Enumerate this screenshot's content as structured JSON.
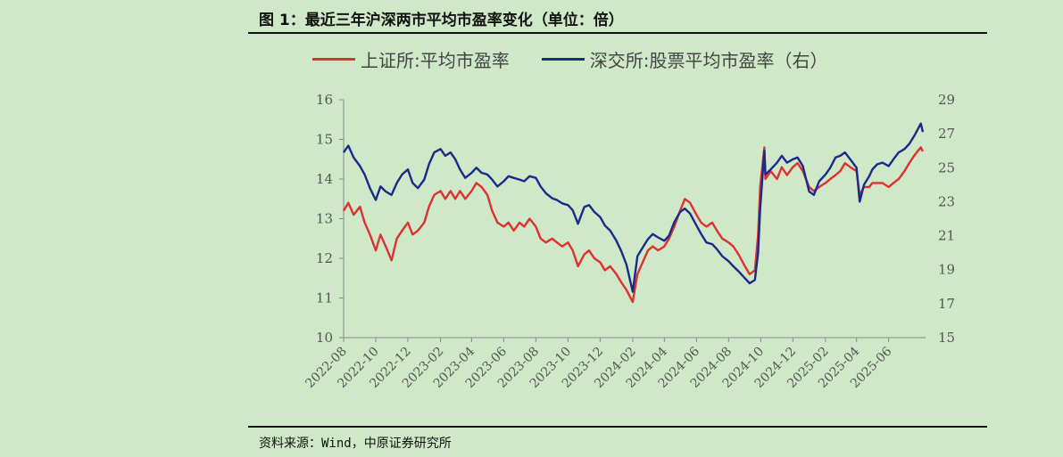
{
  "title": "图 1：最近三年沪深两市平均市盈率变化（单位：倍）",
  "source": "资料来源：Wind，中原证券研究所",
  "chart_data": {
    "type": "line",
    "x_ticks": [
      "2022-08",
      "2022-10",
      "2022-12",
      "2023-02",
      "2023-04",
      "2023-06",
      "2023-08",
      "2023-10",
      "2023-12",
      "2024-02",
      "2024-04",
      "2024-06",
      "2024-08",
      "2024-10",
      "2024-12",
      "2025-02",
      "2025-04",
      "2025-06"
    ],
    "y_left": {
      "min": 10,
      "max": 16,
      "ticks": [
        "10",
        "11",
        "12",
        "13",
        "14",
        "15",
        "16"
      ]
    },
    "y_right": {
      "min": 15,
      "max": 29,
      "ticks": [
        "15",
        "17",
        "19",
        "21",
        "23",
        "25",
        "27",
        "29"
      ]
    },
    "series": [
      {
        "name": "上证所:平均市盈率",
        "axis": "left",
        "color": "#e03030",
        "points": [
          [
            "2022-08-01",
            13.2
          ],
          [
            "2022-08-10",
            13.4
          ],
          [
            "2022-08-20",
            13.1
          ],
          [
            "2022-09-01",
            13.3
          ],
          [
            "2022-09-10",
            12.9
          ],
          [
            "2022-09-20",
            12.6
          ],
          [
            "2022-10-01",
            12.2
          ],
          [
            "2022-10-10",
            12.6
          ],
          [
            "2022-10-20",
            12.3
          ],
          [
            "2022-10-31",
            11.95
          ],
          [
            "2022-11-10",
            12.5
          ],
          [
            "2022-11-20",
            12.7
          ],
          [
            "2022-12-01",
            12.9
          ],
          [
            "2022-12-10",
            12.6
          ],
          [
            "2022-12-20",
            12.7
          ],
          [
            "2023-01-01",
            12.9
          ],
          [
            "2023-01-10",
            13.3
          ],
          [
            "2023-01-20",
            13.6
          ],
          [
            "2023-02-01",
            13.7
          ],
          [
            "2023-02-10",
            13.5
          ],
          [
            "2023-02-20",
            13.7
          ],
          [
            "2023-03-01",
            13.5
          ],
          [
            "2023-03-10",
            13.7
          ],
          [
            "2023-03-20",
            13.5
          ],
          [
            "2023-04-01",
            13.7
          ],
          [
            "2023-04-10",
            13.9
          ],
          [
            "2023-04-20",
            13.8
          ],
          [
            "2023-05-01",
            13.6
          ],
          [
            "2023-05-10",
            13.2
          ],
          [
            "2023-05-20",
            12.9
          ],
          [
            "2023-06-01",
            12.8
          ],
          [
            "2023-06-10",
            12.9
          ],
          [
            "2023-06-20",
            12.7
          ],
          [
            "2023-07-01",
            12.9
          ],
          [
            "2023-07-10",
            12.8
          ],
          [
            "2023-07-20",
            13.0
          ],
          [
            "2023-08-01",
            12.8
          ],
          [
            "2023-08-10",
            12.5
          ],
          [
            "2023-08-20",
            12.4
          ],
          [
            "2023-09-01",
            12.5
          ],
          [
            "2023-09-10",
            12.4
          ],
          [
            "2023-09-20",
            12.3
          ],
          [
            "2023-10-01",
            12.4
          ],
          [
            "2023-10-10",
            12.2
          ],
          [
            "2023-10-20",
            11.8
          ],
          [
            "2023-11-01",
            12.1
          ],
          [
            "2023-11-10",
            12.2
          ],
          [
            "2023-11-20",
            12.0
          ],
          [
            "2023-12-01",
            11.9
          ],
          [
            "2023-12-10",
            11.7
          ],
          [
            "2023-12-20",
            11.8
          ],
          [
            "2024-01-01",
            11.6
          ],
          [
            "2024-01-10",
            11.4
          ],
          [
            "2024-01-20",
            11.2
          ],
          [
            "2024-02-01",
            10.9
          ],
          [
            "2024-02-10",
            11.6
          ],
          [
            "2024-02-20",
            11.9
          ],
          [
            "2024-03-01",
            12.2
          ],
          [
            "2024-03-10",
            12.3
          ],
          [
            "2024-03-20",
            12.2
          ],
          [
            "2024-04-01",
            12.3
          ],
          [
            "2024-04-10",
            12.5
          ],
          [
            "2024-04-20",
            12.8
          ],
          [
            "2024-05-01",
            13.2
          ],
          [
            "2024-05-10",
            13.5
          ],
          [
            "2024-05-20",
            13.4
          ],
          [
            "2024-06-01",
            13.1
          ],
          [
            "2024-06-10",
            12.9
          ],
          [
            "2024-06-20",
            12.8
          ],
          [
            "2024-07-01",
            12.9
          ],
          [
            "2024-07-10",
            12.7
          ],
          [
            "2024-07-20",
            12.5
          ],
          [
            "2024-08-01",
            12.4
          ],
          [
            "2024-08-10",
            12.3
          ],
          [
            "2024-08-20",
            12.1
          ],
          [
            "2024-09-01",
            11.8
          ],
          [
            "2024-09-10",
            11.6
          ],
          [
            "2024-09-20",
            11.7
          ],
          [
            "2024-09-26",
            12.6
          ],
          [
            "2024-09-30",
            13.8
          ],
          [
            "2024-10-08",
            14.8
          ],
          [
            "2024-10-10",
            14.0
          ],
          [
            "2024-10-20",
            14.2
          ],
          [
            "2024-11-01",
            14.0
          ],
          [
            "2024-11-10",
            14.3
          ],
          [
            "2024-11-20",
            14.1
          ],
          [
            "2024-12-01",
            14.3
          ],
          [
            "2024-12-10",
            14.4
          ],
          [
            "2024-12-20",
            14.2
          ],
          [
            "2025-01-01",
            13.8
          ],
          [
            "2025-01-10",
            13.7
          ],
          [
            "2025-01-20",
            13.8
          ],
          [
            "2025-02-01",
            13.9
          ],
          [
            "2025-02-10",
            14.0
          ],
          [
            "2025-02-20",
            14.1
          ],
          [
            "2025-03-01",
            14.2
          ],
          [
            "2025-03-10",
            14.4
          ],
          [
            "2025-03-20",
            14.3
          ],
          [
            "2025-04-01",
            14.2
          ],
          [
            "2025-04-07",
            13.6
          ],
          [
            "2025-04-15",
            13.8
          ],
          [
            "2025-04-25",
            13.8
          ],
          [
            "2025-05-01",
            13.9
          ],
          [
            "2025-05-10",
            13.9
          ],
          [
            "2025-05-20",
            13.9
          ],
          [
            "2025-06-01",
            13.8
          ],
          [
            "2025-06-10",
            13.9
          ],
          [
            "2025-06-20",
            14.0
          ],
          [
            "2025-07-01",
            14.2
          ],
          [
            "2025-07-10",
            14.4
          ],
          [
            "2025-07-20",
            14.6
          ],
          [
            "2025-08-01",
            14.8
          ],
          [
            "2025-08-05",
            14.7
          ]
        ]
      },
      {
        "name": "深交所:股票平均市盈率（右）",
        "axis": "right",
        "color": "#1a2a8a",
        "points": [
          [
            "2022-08-01",
            25.9
          ],
          [
            "2022-08-10",
            26.3
          ],
          [
            "2022-08-20",
            25.6
          ],
          [
            "2022-09-01",
            25.1
          ],
          [
            "2022-09-10",
            24.6
          ],
          [
            "2022-09-20",
            23.8
          ],
          [
            "2022-10-01",
            23.1
          ],
          [
            "2022-10-10",
            23.9
          ],
          [
            "2022-10-20",
            23.6
          ],
          [
            "2022-10-31",
            23.4
          ],
          [
            "2022-11-10",
            24.1
          ],
          [
            "2022-11-20",
            24.6
          ],
          [
            "2022-12-01",
            24.9
          ],
          [
            "2022-12-10",
            24.1
          ],
          [
            "2022-12-20",
            23.8
          ],
          [
            "2023-01-01",
            24.3
          ],
          [
            "2023-01-10",
            25.2
          ],
          [
            "2023-01-20",
            25.9
          ],
          [
            "2023-02-01",
            26.1
          ],
          [
            "2023-02-10",
            25.7
          ],
          [
            "2023-02-20",
            25.9
          ],
          [
            "2023-03-01",
            25.5
          ],
          [
            "2023-03-10",
            24.9
          ],
          [
            "2023-03-20",
            24.4
          ],
          [
            "2023-04-01",
            24.7
          ],
          [
            "2023-04-10",
            25.0
          ],
          [
            "2023-04-20",
            24.7
          ],
          [
            "2023-05-01",
            24.6
          ],
          [
            "2023-05-10",
            24.3
          ],
          [
            "2023-05-20",
            23.9
          ],
          [
            "2023-06-01",
            24.2
          ],
          [
            "2023-06-10",
            24.5
          ],
          [
            "2023-06-20",
            24.4
          ],
          [
            "2023-07-01",
            24.3
          ],
          [
            "2023-07-10",
            24.2
          ],
          [
            "2023-07-20",
            24.5
          ],
          [
            "2023-08-01",
            24.4
          ],
          [
            "2023-08-10",
            23.9
          ],
          [
            "2023-08-20",
            23.5
          ],
          [
            "2023-09-01",
            23.2
          ],
          [
            "2023-09-10",
            23.1
          ],
          [
            "2023-09-20",
            22.9
          ],
          [
            "2023-10-01",
            22.8
          ],
          [
            "2023-10-10",
            22.5
          ],
          [
            "2023-10-20",
            21.7
          ],
          [
            "2023-11-01",
            22.7
          ],
          [
            "2023-11-10",
            22.8
          ],
          [
            "2023-11-20",
            22.4
          ],
          [
            "2023-12-01",
            22.1
          ],
          [
            "2023-12-10",
            21.6
          ],
          [
            "2023-12-20",
            21.3
          ],
          [
            "2024-01-01",
            20.7
          ],
          [
            "2024-01-10",
            20.1
          ],
          [
            "2024-01-20",
            19.3
          ],
          [
            "2024-02-01",
            17.7
          ],
          [
            "2024-02-10",
            19.8
          ],
          [
            "2024-02-20",
            20.3
          ],
          [
            "2024-03-01",
            20.8
          ],
          [
            "2024-03-10",
            21.1
          ],
          [
            "2024-03-20",
            20.9
          ],
          [
            "2024-04-01",
            20.7
          ],
          [
            "2024-04-10",
            21.0
          ],
          [
            "2024-04-20",
            21.8
          ],
          [
            "2024-05-01",
            22.4
          ],
          [
            "2024-05-10",
            22.6
          ],
          [
            "2024-05-20",
            22.3
          ],
          [
            "2024-06-01",
            21.6
          ],
          [
            "2024-06-10",
            21.1
          ],
          [
            "2024-06-20",
            20.6
          ],
          [
            "2024-07-01",
            20.5
          ],
          [
            "2024-07-10",
            20.2
          ],
          [
            "2024-07-20",
            19.8
          ],
          [
            "2024-08-01",
            19.5
          ],
          [
            "2024-08-10",
            19.2
          ],
          [
            "2024-08-20",
            18.9
          ],
          [
            "2024-09-01",
            18.5
          ],
          [
            "2024-09-10",
            18.2
          ],
          [
            "2024-09-20",
            18.4
          ],
          [
            "2024-09-26",
            20.0
          ],
          [
            "2024-09-30",
            22.6
          ],
          [
            "2024-10-08",
            26.0
          ],
          [
            "2024-10-10",
            24.6
          ],
          [
            "2024-10-20",
            24.9
          ],
          [
            "2024-11-01",
            25.3
          ],
          [
            "2024-11-10",
            25.7
          ],
          [
            "2024-11-20",
            25.3
          ],
          [
            "2024-12-01",
            25.5
          ],
          [
            "2024-12-10",
            25.6
          ],
          [
            "2024-12-20",
            25.1
          ],
          [
            "2025-01-01",
            23.6
          ],
          [
            "2025-01-10",
            23.4
          ],
          [
            "2025-01-20",
            24.2
          ],
          [
            "2025-02-01",
            24.6
          ],
          [
            "2025-02-10",
            25.0
          ],
          [
            "2025-02-20",
            25.6
          ],
          [
            "2025-03-01",
            25.7
          ],
          [
            "2025-03-10",
            25.9
          ],
          [
            "2025-03-20",
            25.5
          ],
          [
            "2025-04-01",
            25.0
          ],
          [
            "2025-04-07",
            23.0
          ],
          [
            "2025-04-15",
            24.0
          ],
          [
            "2025-04-25",
            24.5
          ],
          [
            "2025-05-01",
            24.9
          ],
          [
            "2025-05-10",
            25.2
          ],
          [
            "2025-05-20",
            25.3
          ],
          [
            "2025-06-01",
            25.1
          ],
          [
            "2025-06-10",
            25.5
          ],
          [
            "2025-06-20",
            25.9
          ],
          [
            "2025-07-01",
            26.1
          ],
          [
            "2025-07-10",
            26.4
          ],
          [
            "2025-07-20",
            26.9
          ],
          [
            "2025-08-01",
            27.6
          ],
          [
            "2025-08-05",
            27.1
          ]
        ]
      }
    ]
  }
}
